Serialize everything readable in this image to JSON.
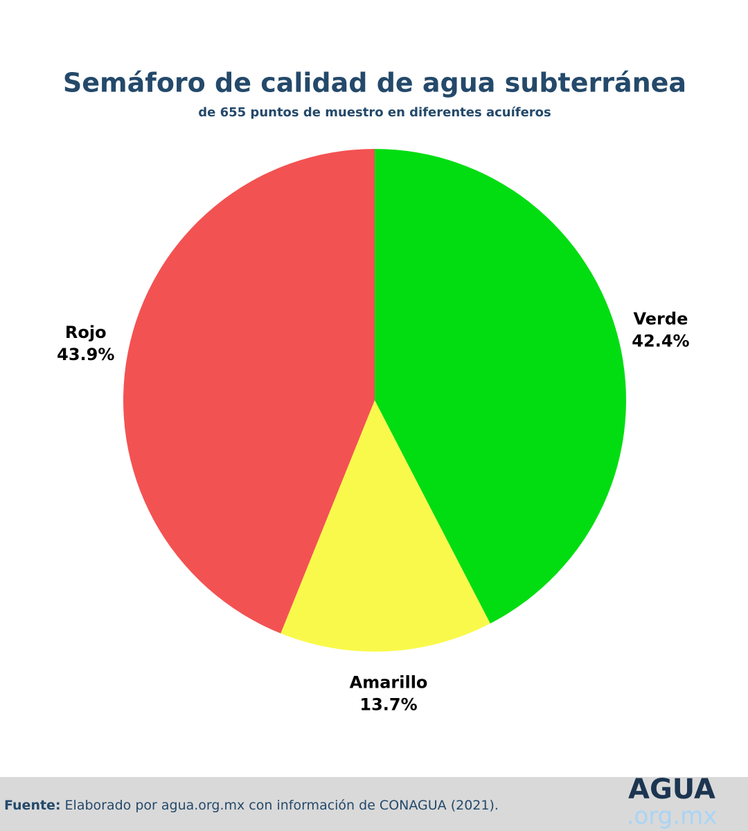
{
  "chart_data": {
    "type": "pie",
    "title": "Semáforo de calidad de agua subterránea",
    "subtitle": "de 655 puntos de muestro en diferentes acuíferos",
    "categories": [
      "Verde",
      "Amarillo",
      "Rojo"
    ],
    "values": [
      42.4,
      13.7,
      43.9
    ],
    "value_labels": [
      "42.4%",
      "13.7%",
      "43.9%"
    ],
    "colors": [
      "#02dd12",
      "#f9f94c",
      "#f35252"
    ],
    "source_label": "Fuente:",
    "source": "Elaborado por agua.org.mx con información de CONAGUA (2021).",
    "logo": "AGUA",
    "logo_sub": ".org.mx"
  }
}
